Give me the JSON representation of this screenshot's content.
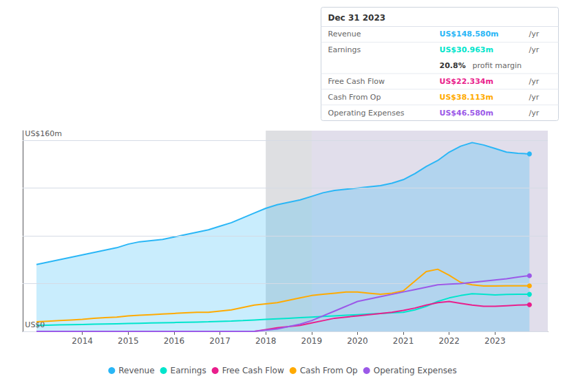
{
  "chart_data": {
    "type": "line",
    "x": [
      2013.0,
      2013.25,
      2013.5,
      2013.75,
      2014.0,
      2014.25,
      2014.5,
      2014.75,
      2015.0,
      2015.25,
      2015.5,
      2015.75,
      2016.0,
      2016.25,
      2016.5,
      2016.75,
      2017.0,
      2017.25,
      2017.5,
      2017.75,
      2018.0,
      2018.25,
      2018.5,
      2018.75,
      2019.0,
      2019.25,
      2019.5,
      2019.75,
      2020.0,
      2020.25,
      2020.5,
      2020.75,
      2021.0,
      2021.25,
      2021.5,
      2021.75,
      2022.0,
      2022.25,
      2022.5,
      2022.75,
      2023.0,
      2023.25,
      2023.5,
      2023.75
    ],
    "series": [
      {
        "name": "Revenue",
        "color": "#29b6f6",
        "type": "area",
        "values": [
          56,
          58,
          60,
          62,
          64,
          66,
          68,
          70,
          73,
          75,
          76,
          77,
          79,
          81,
          83,
          85,
          88,
          91,
          95,
          99,
          103,
          106,
          108,
          110,
          113,
          116,
          118,
          119,
          120,
          121,
          122,
          124,
          127,
          132,
          138,
          143,
          150,
          155,
          158,
          156,
          153,
          150,
          149,
          148.5
        ]
      },
      {
        "name": "Earnings",
        "color": "#00e5cc",
        "type": "line",
        "values": [
          5,
          5.2,
          5.4,
          5.6,
          5.8,
          6.0,
          6.2,
          6.4,
          6.6,
          6.8,
          7.0,
          7.2,
          7.4,
          7.6,
          7.8,
          8.0,
          8.3,
          8.6,
          9.0,
          9.5,
          10.0,
          10.5,
          11.0,
          11.5,
          12.0,
          12.5,
          13.0,
          13.5,
          14.0,
          14.5,
          15.0,
          15.5,
          16.0,
          18.0,
          21.0,
          25.0,
          28.0,
          30.0,
          31.5,
          31.0,
          30.5,
          30.9,
          31.0,
          31.0
        ]
      },
      {
        "name": "Free Cash Flow",
        "color": "#e91e8c",
        "type": "line",
        "values": [
          0,
          0,
          0,
          0,
          0,
          0,
          0,
          0,
          0,
          0,
          0,
          0,
          0,
          0,
          0,
          0,
          0,
          0,
          0,
          0,
          1.5,
          3,
          4,
          5,
          7,
          9,
          11,
          12,
          13,
          14,
          15,
          16,
          17.5,
          19.5,
          22,
          24,
          25,
          23.5,
          22,
          21,
          21,
          21.5,
          22,
          22.3
        ]
      },
      {
        "name": "Cash From Op",
        "color": "#ffaa00",
        "type": "line",
        "values": [
          8,
          8.5,
          9,
          9.5,
          10,
          11,
          11.5,
          12,
          13,
          13.5,
          14,
          14.5,
          15,
          15.5,
          16,
          16,
          17,
          18,
          20,
          22,
          23,
          24,
          26,
          28,
          30,
          31,
          32,
          33,
          33,
          32,
          31,
          32,
          34,
          42,
          50,
          52,
          47,
          41,
          39,
          38,
          38,
          38.1,
          38.1,
          38.1
        ]
      },
      {
        "name": "Operating Expenses",
        "color": "#9b59e8",
        "type": "line",
        "values": [
          0,
          0,
          0,
          0,
          0,
          0,
          0,
          0,
          0,
          0,
          0,
          0,
          0,
          0,
          0,
          0,
          0,
          0,
          0,
          0,
          1,
          2,
          4,
          6,
          9,
          13,
          17,
          21,
          25,
          27,
          29,
          31,
          33,
          35,
          37,
          39,
          39.5,
          40,
          41,
          42,
          43,
          44,
          45.5,
          46.6
        ]
      }
    ],
    "xlim": [
      2012.7,
      2024.15
    ],
    "xticks": [
      2014,
      2015,
      2016,
      2017,
      2018,
      2019,
      2020,
      2021,
      2022,
      2023
    ],
    "ylim": [
      0,
      168
    ],
    "yticks": [
      0,
      40,
      80,
      120,
      160
    ],
    "grid": true,
    "tick_labels": "x",
    "legend": "bottom",
    "shaded_regions": [
      {
        "start": 2018.0,
        "end": 2019.0,
        "color": "#5a6070"
      },
      {
        "start": 2019.0,
        "end": 2024.15,
        "color": "#6b5b9a"
      }
    ],
    "annotations": [
      {
        "text": "US$160m",
        "x": 2012.75,
        "y": 161
      },
      {
        "text": "US$0",
        "x": 2012.75,
        "y": 1
      }
    ],
    "info_box": {
      "title": "Dec 31 2023",
      "rows": [
        {
          "label": "Revenue",
          "value": "US$148.580m",
          "color": "#29b6f6",
          "unit": "/yr"
        },
        {
          "label": "Earnings",
          "value": "US$30.963m",
          "color": "#00e5cc",
          "unit": "/yr"
        },
        {
          "value": "20.8%",
          "note": "profit margin"
        },
        {
          "label": "Free Cash Flow",
          "value": "US$22.334m",
          "color": "#e91e8c",
          "unit": "/yr"
        },
        {
          "label": "Cash From Op",
          "value": "US$38.113m",
          "color": "#ffaa00",
          "unit": "/yr"
        },
        {
          "label": "Operating Expenses",
          "value": "US$46.580m",
          "color": "#9b59e8",
          "unit": "/yr"
        }
      ]
    }
  }
}
